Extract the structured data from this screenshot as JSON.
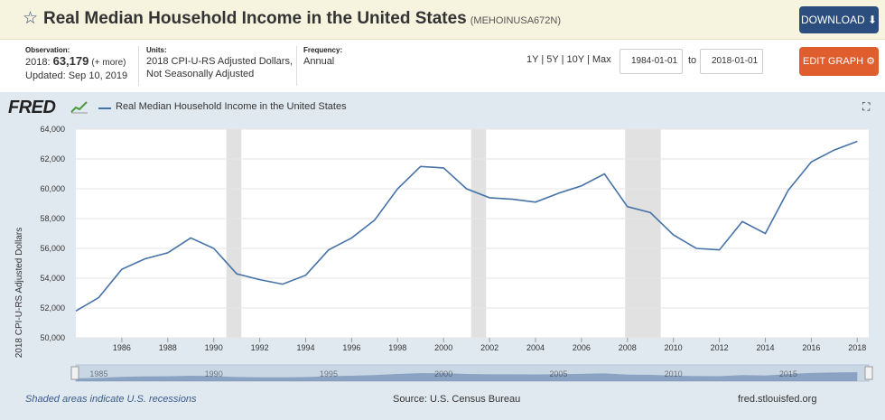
{
  "header": {
    "title": "Real Median Household Income in the United States",
    "series_id": "(MEHOINUSA672N)",
    "download_label": "DOWNLOAD ⬇"
  },
  "info": {
    "observation_label": "Observation:",
    "observation_date": "2018:",
    "observation_value": "63,179",
    "observation_more": "(+ more)",
    "updated": "Updated: Sep 10, 2019",
    "units_label": "Units:",
    "units_line1": "2018 CPI-U-RS Adjusted Dollars,",
    "units_line2": "Not Seasonally Adjusted",
    "frequency_label": "Frequency:",
    "frequency_value": "Annual"
  },
  "controls": {
    "range_1y": "1Y",
    "range_5y": "5Y",
    "range_10y": "10Y",
    "range_max": "Max",
    "sep": "|",
    "start_date": "1984-01-01",
    "to_label": "to",
    "end_date": "2018-01-01",
    "edit_label": "EDIT GRAPH ⚙"
  },
  "chart_header": {
    "logo": "FRED",
    "legend": "Real Median Household Income in the United States"
  },
  "footer": {
    "left": "Shaded areas indicate U.S. recessions",
    "source": "Source: U.S. Census Bureau",
    "site": "fred.stlouisfed.org"
  },
  "colors": {
    "line": "#4572a7",
    "recession": "#e1e1e1",
    "download_button": "#2c4e7e",
    "edit_button": "#e05d2d"
  },
  "chart_data": {
    "type": "line",
    "title": "Real Median Household Income in the United States",
    "ylabel": "2018 CPI-U-RS Adjusted Dollars",
    "xlabel": "",
    "x": [
      1984,
      1985,
      1986,
      1987,
      1988,
      1989,
      1990,
      1991,
      1992,
      1993,
      1994,
      1995,
      1996,
      1997,
      1998,
      1999,
      2000,
      2001,
      2002,
      2003,
      2004,
      2005,
      2006,
      2007,
      2008,
      2009,
      2010,
      2011,
      2012,
      2013,
      2014,
      2015,
      2016,
      2017,
      2018
    ],
    "series": [
      {
        "name": "Real Median Household Income in the United States",
        "values": [
          51800,
          52700,
          54600,
          55300,
          55700,
          56700,
          56000,
          54300,
          53900,
          53600,
          54200,
          55900,
          56700,
          57900,
          60000,
          61500,
          61400,
          60000,
          59400,
          59300,
          59100,
          59700,
          60200,
          61000,
          58800,
          58400,
          56900,
          56000,
          55900,
          57800,
          57000,
          59900,
          61800,
          62600,
          63179
        ]
      }
    ],
    "xlim": [
      1984,
      2018.5
    ],
    "ylim": [
      50000,
      64000
    ],
    "yticks": [
      50000,
      52000,
      54000,
      56000,
      58000,
      60000,
      62000,
      64000
    ],
    "ytick_labels": [
      "50,000",
      "52,000",
      "54,000",
      "56,000",
      "58,000",
      "60,000",
      "62,000",
      "64,000"
    ],
    "xticks": [
      1986,
      1988,
      1990,
      1992,
      1994,
      1996,
      1998,
      2000,
      2002,
      2004,
      2006,
      2008,
      2010,
      2012,
      2014,
      2016,
      2018
    ],
    "xtick_labels": [
      "1986",
      "1988",
      "1990",
      "1992",
      "1994",
      "1996",
      "1998",
      "2000",
      "2002",
      "2004",
      "2006",
      "2008",
      "2010",
      "2012",
      "2014",
      "2016",
      "2018"
    ],
    "recessions": [
      [
        1990.55,
        1991.2
      ],
      [
        2001.2,
        2001.85
      ],
      [
        2007.9,
        2009.45
      ]
    ],
    "navigator_labels": [
      "1985",
      "1990",
      "1995",
      "2000",
      "2005",
      "2010",
      "2015"
    ],
    "grid": true,
    "legend": "top-left"
  }
}
